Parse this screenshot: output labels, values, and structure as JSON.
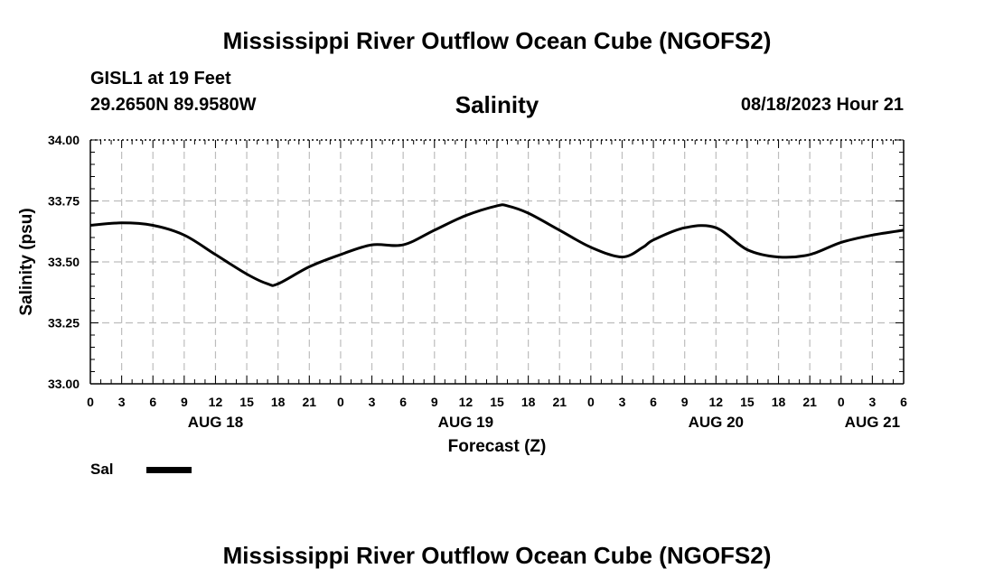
{
  "header": {
    "title": "Mississippi River Outflow Ocean Cube (NGOFS2)",
    "station": "GISL1 at 19 Feet",
    "coords": "29.2650N  89.9580W",
    "subtitle": "Salinity",
    "datetime": "08/18/2023 Hour 21"
  },
  "footer": {
    "title": "Mississippi River Outflow Ocean Cube (NGOFS2)"
  },
  "legend": {
    "label": "Sal"
  },
  "chart_data": {
    "type": "line",
    "title": "Salinity",
    "xlabel": "Forecast (Z)",
    "ylabel": "Salinity (psu)",
    "xlim": [
      0,
      78
    ],
    "ylim": [
      33.0,
      34.0
    ],
    "yticks": [
      33.0,
      33.25,
      33.5,
      33.75,
      34.0
    ],
    "ytick_labels": [
      "33.00",
      "33.25",
      "33.50",
      "33.75",
      "34.00"
    ],
    "xticks": [
      0,
      3,
      6,
      9,
      12,
      15,
      18,
      21,
      24,
      27,
      30,
      33,
      36,
      39,
      42,
      45,
      48,
      51,
      54,
      57,
      60,
      63,
      66,
      69,
      72,
      75,
      78
    ],
    "xtick_labels": [
      "0",
      "3",
      "6",
      "9",
      "12",
      "15",
      "18",
      "21",
      "0",
      "3",
      "6",
      "9",
      "12",
      "15",
      "18",
      "21",
      "0",
      "3",
      "6",
      "9",
      "12",
      "15",
      "18",
      "21",
      "0",
      "3",
      "6"
    ],
    "date_labels": [
      {
        "x": 12,
        "label": "AUG 18"
      },
      {
        "x": 36,
        "label": "AUG 19"
      },
      {
        "x": 60,
        "label": "AUG 20"
      },
      {
        "x": 75,
        "label": "AUG 21"
      }
    ],
    "grid": true,
    "series": [
      {
        "name": "Sal",
        "color": "#000000",
        "x": [
          0,
          3,
          6,
          9,
          12,
          15,
          17,
          18,
          21,
          24,
          27,
          30,
          33,
          36,
          39,
          40,
          42,
          45,
          48,
          51,
          53,
          54,
          57,
          60,
          63,
          66,
          69,
          72,
          75,
          78
        ],
        "values": [
          33.65,
          33.66,
          33.65,
          33.61,
          33.53,
          33.45,
          33.41,
          33.41,
          33.48,
          33.53,
          33.57,
          33.57,
          33.63,
          33.69,
          33.73,
          33.73,
          33.7,
          33.63,
          33.56,
          33.52,
          33.56,
          33.59,
          33.64,
          33.64,
          33.55,
          33.52,
          33.53,
          33.58,
          33.61,
          33.63
        ]
      }
    ]
  }
}
